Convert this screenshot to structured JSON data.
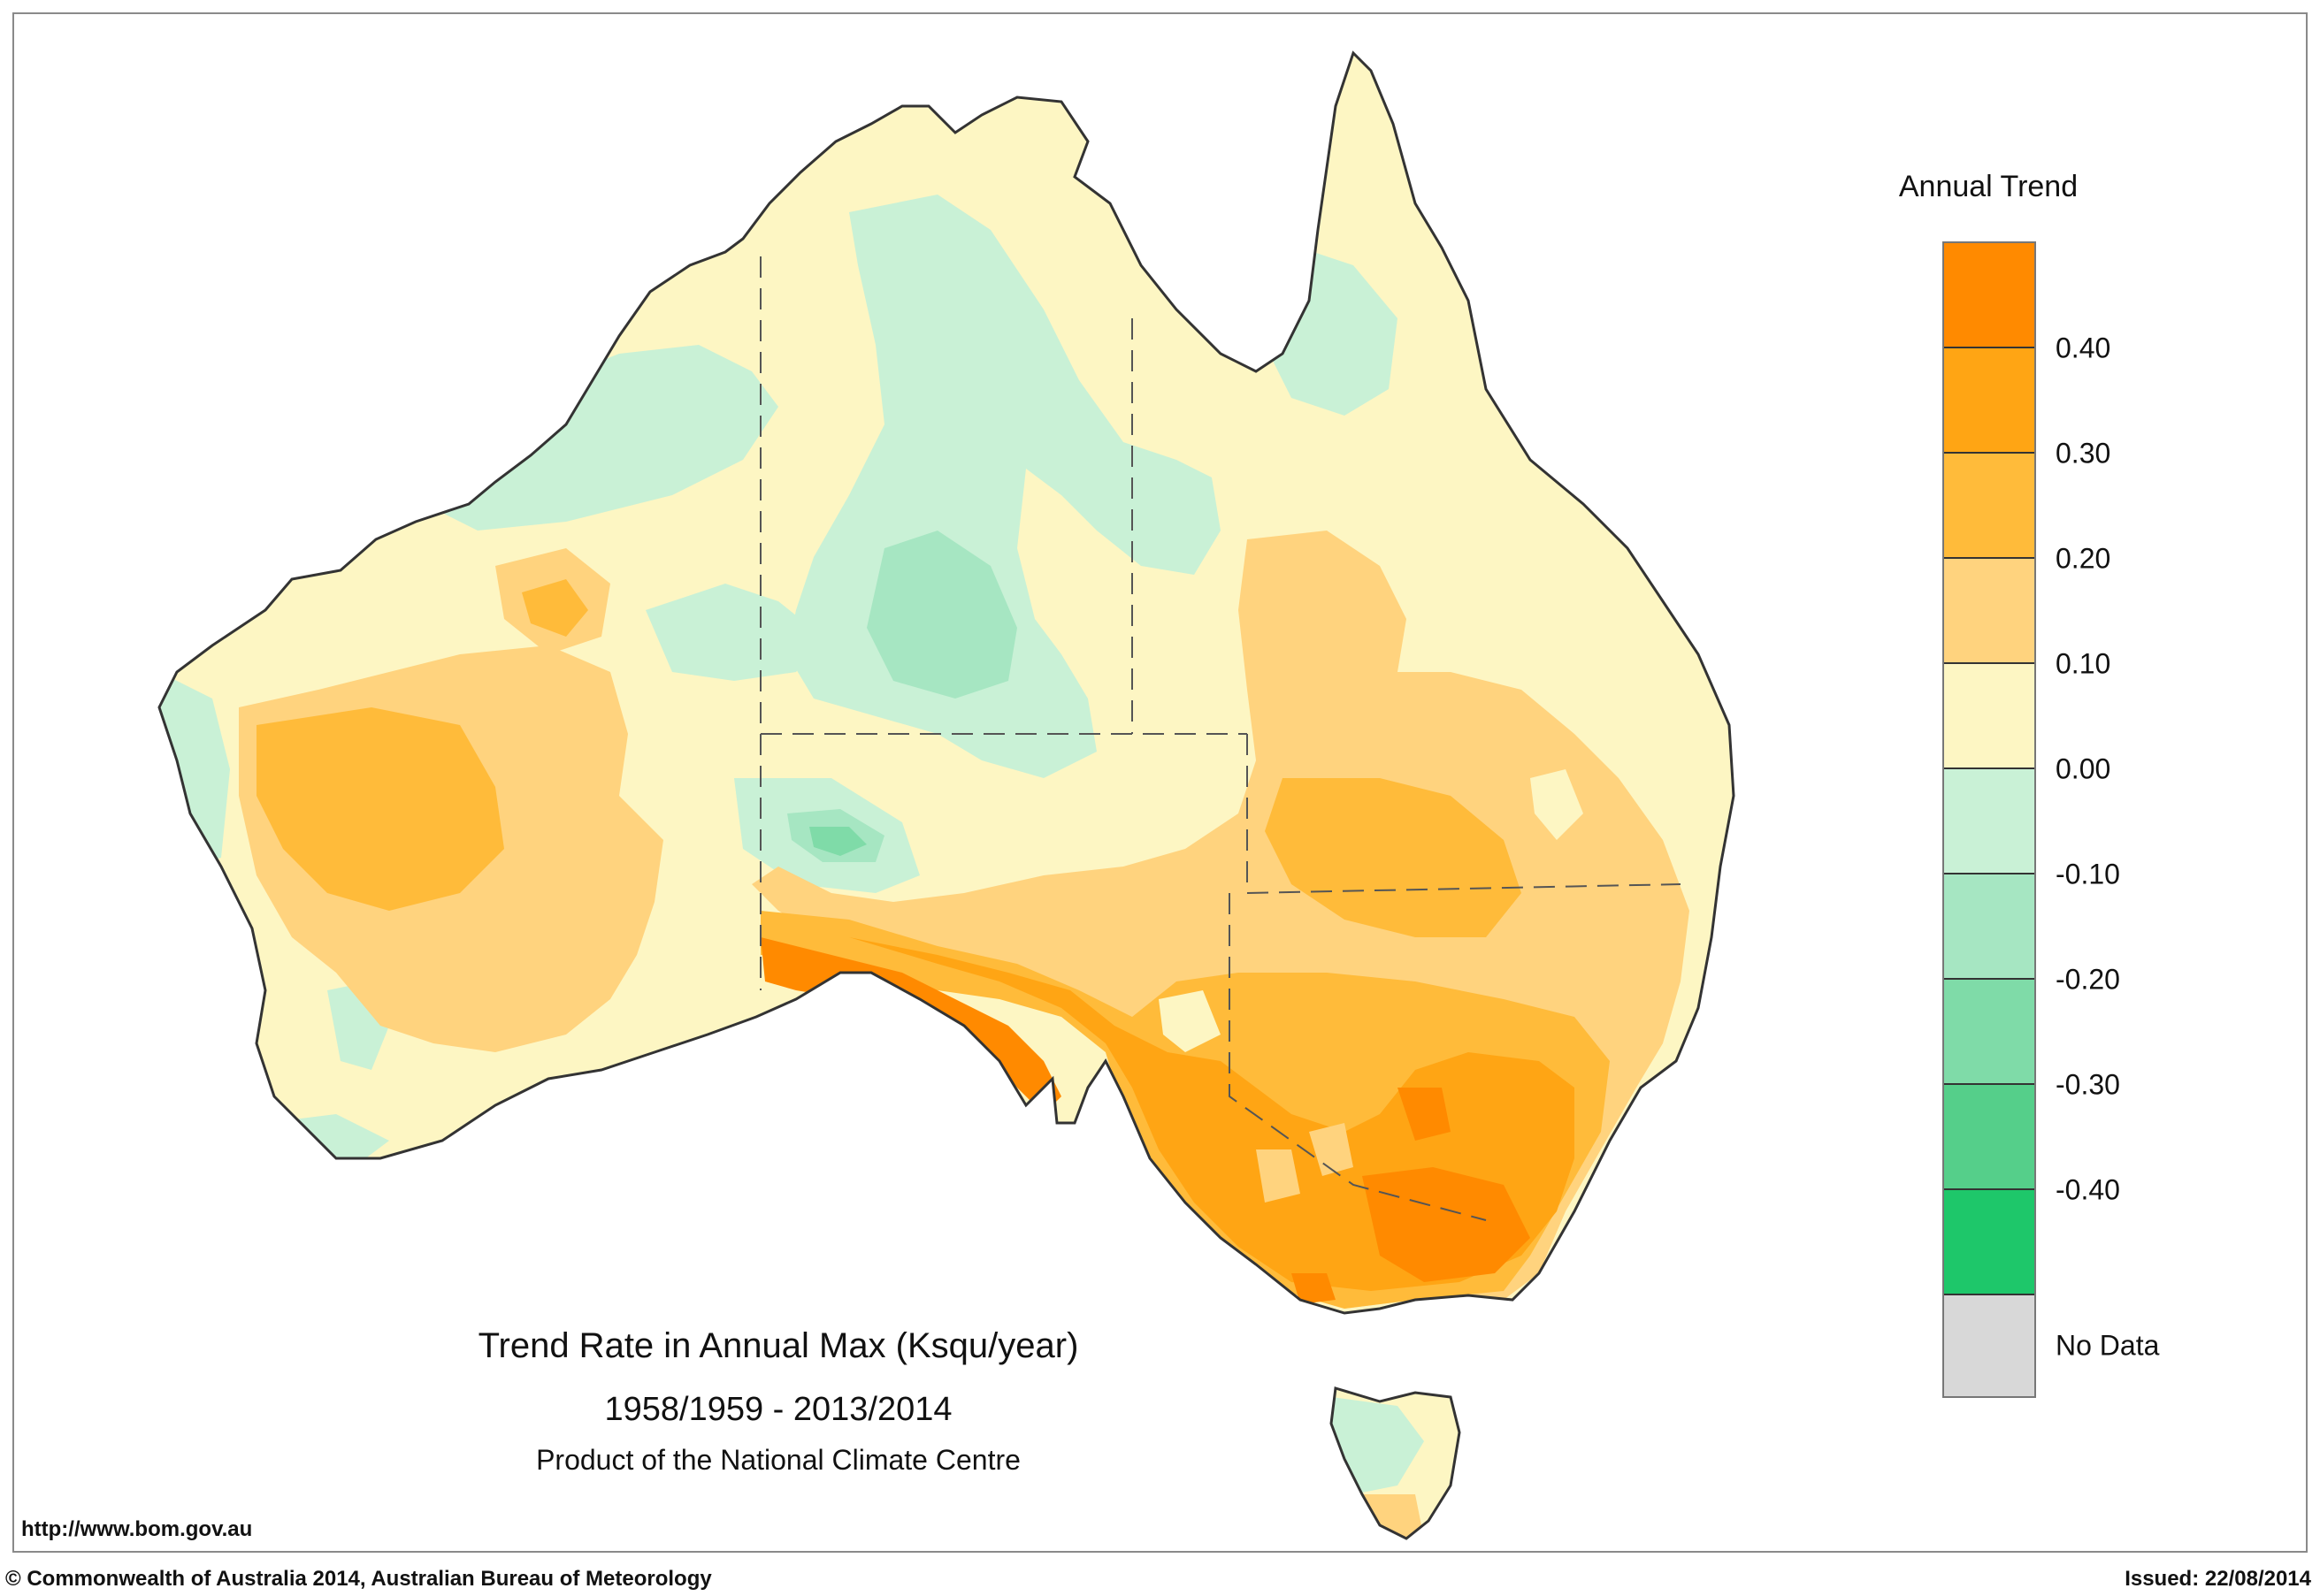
{
  "map": {
    "title": "Trend Rate in Annual Max (Ksqu/year)",
    "period": "1958/1959 - 2013/2014",
    "product": "Product of the National Climate Centre",
    "url": "http://www.bom.gov.au",
    "copyright": "© Commonwealth of Australia 2014, Australian Bureau of Meteorology",
    "issued": "Issued: 22/08/2014",
    "region": "Australia"
  },
  "legend": {
    "title": "Annual Trend",
    "bins": [
      {
        "color": "#ff8a00",
        "range": "> 0.40"
      },
      {
        "color": "#ffa514",
        "range": "0.30 to 0.40"
      },
      {
        "color": "#ffbb3a",
        "range": "0.20 to 0.30"
      },
      {
        "color": "#ffd37e",
        "range": "0.10 to 0.20"
      },
      {
        "color": "#fdf6c3",
        "range": "0.00 to 0.10"
      },
      {
        "color": "#c9f1d6",
        "range": "-0.10 to 0.00"
      },
      {
        "color": "#a6e6c2",
        "range": "-0.20 to -0.10"
      },
      {
        "color": "#7fdba8",
        "range": "-0.30 to -0.20"
      },
      {
        "color": "#55cf8a",
        "range": "-0.40 to -0.30"
      },
      {
        "color": "#1ec76a",
        "range": "< -0.40"
      },
      {
        "color": "#d8d8d8",
        "range": "No Data"
      }
    ],
    "ticks": [
      "0.40",
      "0.30",
      "0.20",
      "0.10",
      "0.00",
      "-0.10",
      "-0.20",
      "-0.30",
      "-0.40"
    ],
    "no_data_label": "No Data"
  }
}
